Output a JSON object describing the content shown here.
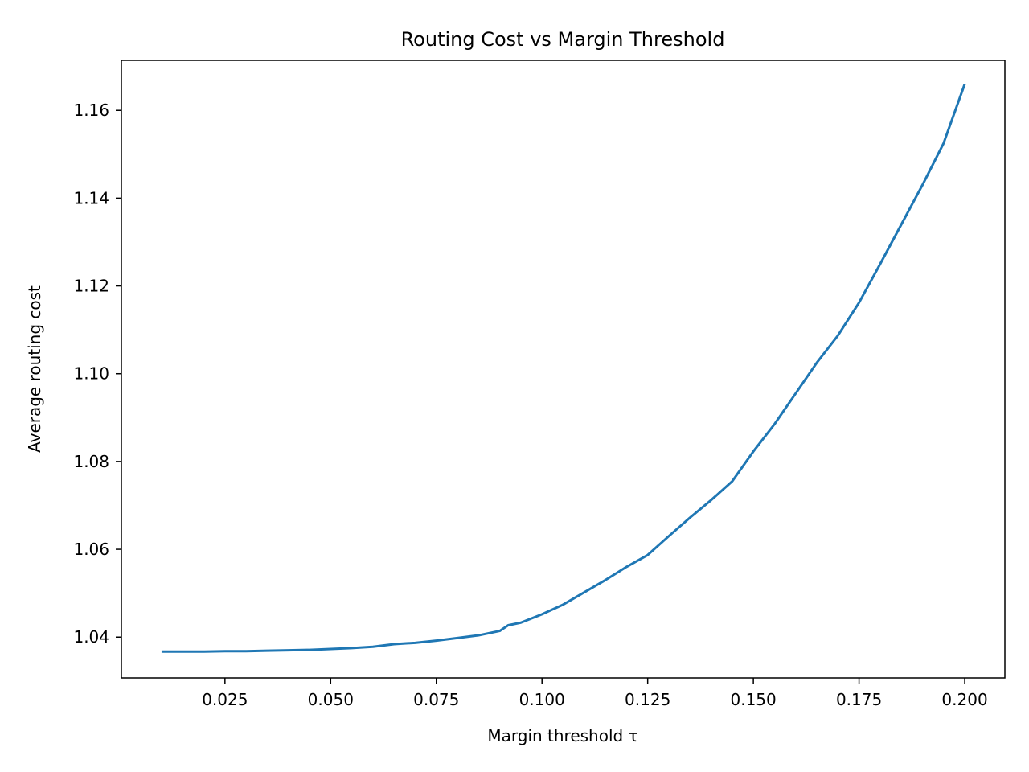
{
  "chart_data": {
    "type": "line",
    "title": "Routing Cost vs Margin Threshold",
    "xlabel": "Margin threshold τ",
    "ylabel": "Average routing cost",
    "xlim": [
      0.0005,
      0.2095
    ],
    "ylim": [
      1.0307,
      1.1714
    ],
    "grid": false,
    "x_ticks": [
      0.025,
      0.05,
      0.075,
      0.1,
      0.125,
      0.15,
      0.175,
      0.2
    ],
    "x_tick_labels": [
      "0.025",
      "0.050",
      "0.075",
      "0.100",
      "0.125",
      "0.150",
      "0.175",
      "0.200"
    ],
    "y_ticks": [
      1.04,
      1.06,
      1.08,
      1.1,
      1.12,
      1.14,
      1.16
    ],
    "y_tick_labels": [
      "1.04",
      "1.06",
      "1.08",
      "1.10",
      "1.12",
      "1.14",
      "1.16"
    ],
    "colors": {
      "series": "#1f77b4",
      "axes": "#000000",
      "background": "#ffffff"
    },
    "series": [
      {
        "x": [
          0.01,
          0.015,
          0.02,
          0.025,
          0.03,
          0.035,
          0.04,
          0.045,
          0.05,
          0.055,
          0.06,
          0.065,
          0.07,
          0.075,
          0.08,
          0.085,
          0.09,
          0.092,
          0.095,
          0.1,
          0.105,
          0.11,
          0.115,
          0.12,
          0.125,
          0.13,
          0.135,
          0.14,
          0.145,
          0.15,
          0.155,
          0.16,
          0.165,
          0.17,
          0.175,
          0.18,
          0.185,
          0.19,
          0.195,
          0.2
        ],
        "values": [
          1.0367,
          1.0367,
          1.0367,
          1.0368,
          1.0368,
          1.0369,
          1.037,
          1.0371,
          1.0373,
          1.0375,
          1.0378,
          1.0384,
          1.0387,
          1.0392,
          1.0398,
          1.0404,
          1.0414,
          1.0427,
          1.0433,
          1.0452,
          1.0474,
          1.0502,
          1.053,
          1.056,
          1.0587,
          1.063,
          1.0672,
          1.0712,
          1.0755,
          1.0823,
          1.0885,
          1.0955,
          1.1025,
          1.1087,
          1.1162,
          1.125,
          1.134,
          1.143,
          1.1525,
          1.166
        ]
      }
    ]
  }
}
